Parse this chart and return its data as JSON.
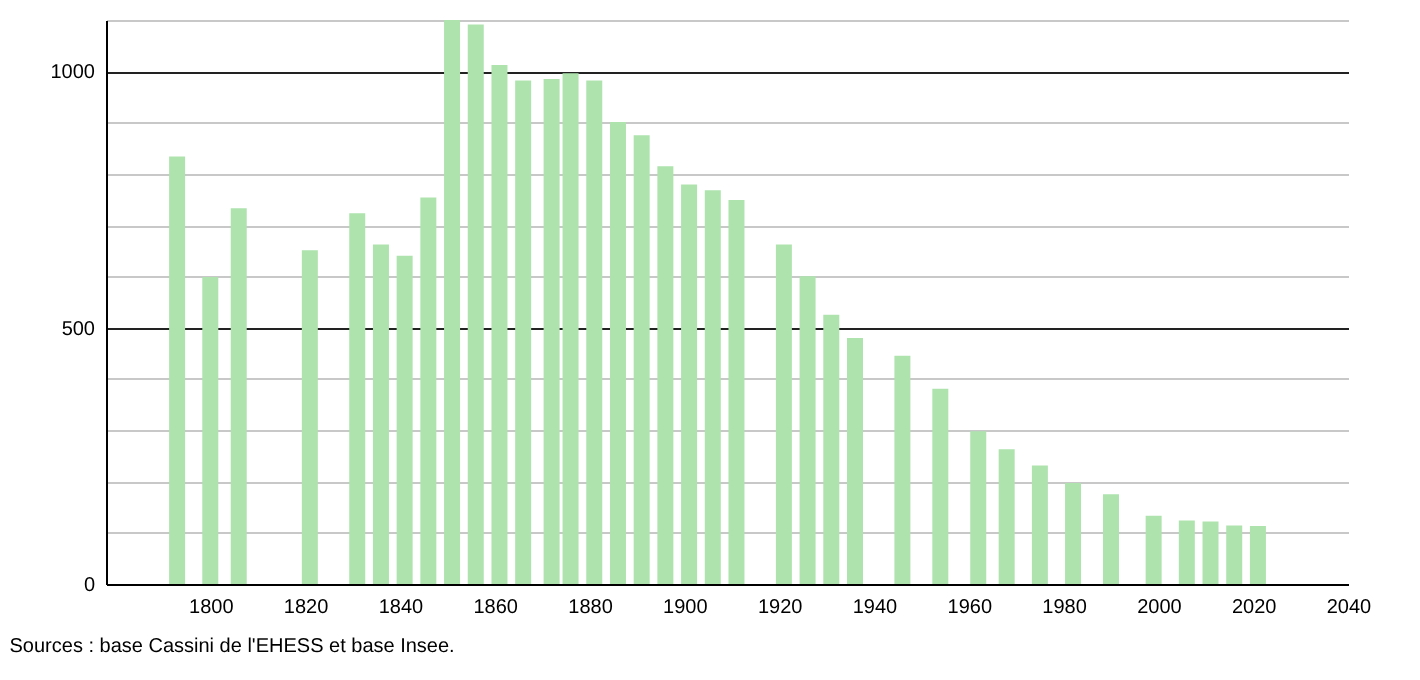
{
  "chart_data": {
    "type": "bar",
    "annotations": [
      "Sources : base Cassini de l'EHESS et base Insee."
    ],
    "x": [
      1793,
      1800,
      1806,
      1821,
      1831,
      1836,
      1841,
      1846,
      1851,
      1856,
      1861,
      1866,
      1872,
      1876,
      1881,
      1886,
      1891,
      1896,
      1901,
      1906,
      1911,
      1921,
      1926,
      1931,
      1936,
      1946,
      1954,
      1962,
      1968,
      1975,
      1982,
      1990,
      1999,
      2006,
      2011,
      2016,
      2021
    ],
    "values": [
      834,
      599,
      733,
      651,
      723,
      662,
      640,
      754,
      1100,
      1091,
      1012,
      982,
      985,
      996,
      982,
      901,
      875,
      815,
      779,
      768,
      749,
      662,
      600,
      525,
      480,
      445,
      381,
      298,
      263,
      231,
      197,
      175,
      133,
      124,
      122,
      114,
      113
    ],
    "color": "#aee3ae",
    "xlim": [
      1778,
      2040
    ],
    "xticks": [
      1800,
      1820,
      1840,
      1860,
      1880,
      1900,
      1920,
      1940,
      1960,
      1980,
      2000,
      2020,
      2040
    ],
    "ylim": [
      0,
      1100
    ],
    "yticks": [
      0,
      {
        "value": 100,
        "label": null
      },
      {
        "value": 200,
        "label": null
      },
      {
        "value": 300,
        "label": null
      },
      {
        "value": 400,
        "label": null
      },
      500,
      {
        "value": 600,
        "label": null
      },
      {
        "value": 700,
        "label": null
      },
      {
        "value": 800,
        "label": null
      },
      {
        "value": 900,
        "label": null
      },
      1000,
      {
        "value": 1100,
        "label": null
      }
    ],
    "grid": "y"
  }
}
